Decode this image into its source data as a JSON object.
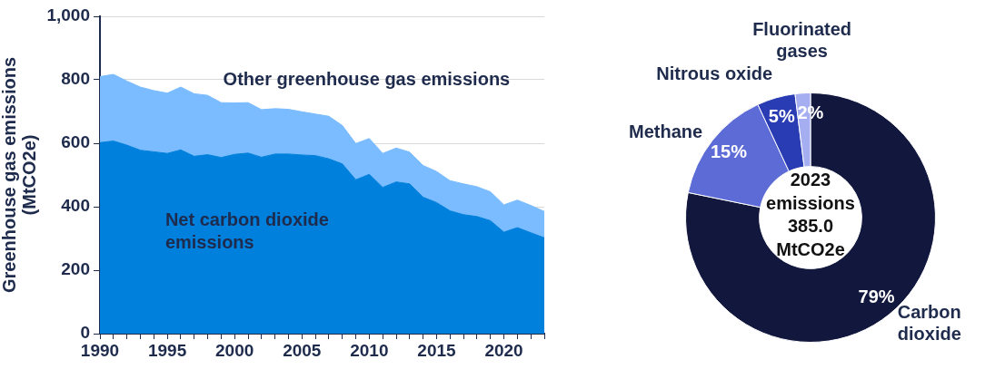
{
  "chart_data": [
    {
      "type": "area",
      "stacked": true,
      "ylabel": "Greenhouse gas emissions (MtCO2e)",
      "x": [
        1990,
        1991,
        1992,
        1993,
        1994,
        1995,
        1996,
        1997,
        1998,
        1999,
        2000,
        2001,
        2002,
        2003,
        2004,
        2005,
        2006,
        2007,
        2008,
        2009,
        2010,
        2011,
        2012,
        2013,
        2014,
        2015,
        2016,
        2017,
        2018,
        2019,
        2020,
        2021,
        2022,
        2023
      ],
      "series": [
        {
          "name": "Net carbon dioxide emissions",
          "color": "#0080dd",
          "values": [
            602,
            607,
            594,
            578,
            573,
            568,
            579,
            559,
            564,
            555,
            565,
            569,
            556,
            566,
            566,
            563,
            561,
            551,
            535,
            485,
            502,
            461,
            478,
            472,
            430,
            413,
            387,
            375,
            369,
            356,
            320,
            334,
            318,
            302
          ]
        },
        {
          "name": "Other greenhouse gas emissions",
          "color": "#7abcff",
          "values": [
            208,
            210,
            202,
            199,
            193,
            190,
            198,
            197,
            187,
            173,
            162,
            159,
            150,
            143,
            141,
            136,
            131,
            134,
            121,
            114,
            113,
            107,
            107,
            100,
            100,
            98,
            95,
            97,
            94,
            91,
            86,
            87,
            86,
            83
          ]
        }
      ],
      "xlim": [
        1990,
        2023
      ],
      "xticks": [
        1990,
        {
          "value": 1991,
          "label": null
        },
        {
          "value": 1992,
          "label": null
        },
        {
          "value": 1993,
          "label": null
        },
        {
          "value": 1994,
          "label": null
        },
        1995,
        {
          "value": 1996,
          "label": null
        },
        {
          "value": 1997,
          "label": null
        },
        {
          "value": 1998,
          "label": null
        },
        {
          "value": 1999,
          "label": null
        },
        2000,
        {
          "value": 2001,
          "label": null
        },
        {
          "value": 2002,
          "label": null
        },
        {
          "value": 2003,
          "label": null
        },
        {
          "value": 2004,
          "label": null
        },
        2005,
        {
          "value": 2006,
          "label": null
        },
        {
          "value": 2007,
          "label": null
        },
        {
          "value": 2008,
          "label": null
        },
        {
          "value": 2009,
          "label": null
        },
        2010,
        {
          "value": 2011,
          "label": null
        },
        {
          "value": 2012,
          "label": null
        },
        {
          "value": 2013,
          "label": null
        },
        {
          "value": 2014,
          "label": null
        },
        2015,
        {
          "value": 2016,
          "label": null
        },
        {
          "value": 2017,
          "label": null
        },
        {
          "value": 2018,
          "label": null
        },
        {
          "value": 2019,
          "label": null
        },
        2020,
        {
          "value": 2021,
          "label": null
        },
        {
          "value": 2022,
          "label": null
        },
        {
          "value": 2023,
          "label": null
        }
      ],
      "ylim": [
        0,
        1000
      ],
      "yticks": [
        0,
        200,
        400,
        600,
        800,
        {
          "value": 1000,
          "label": "1,000"
        }
      ],
      "grid": "y"
    },
    {
      "type": "donut",
      "categories": [
        "Carbon dioxide",
        "Methane",
        "Nitrous oxide",
        "Fluorinated gases"
      ],
      "values": [
        79,
        15,
        5,
        2
      ],
      "colors": [
        "#12173d",
        "#5c6bd6",
        "#2a3cb3",
        "#a4aef0"
      ],
      "value_labels": [
        "79%",
        "15%",
        "5%",
        "2%"
      ],
      "annotations": [
        "2023 emissions 385.0 MtCO2e"
      ]
    }
  ]
}
